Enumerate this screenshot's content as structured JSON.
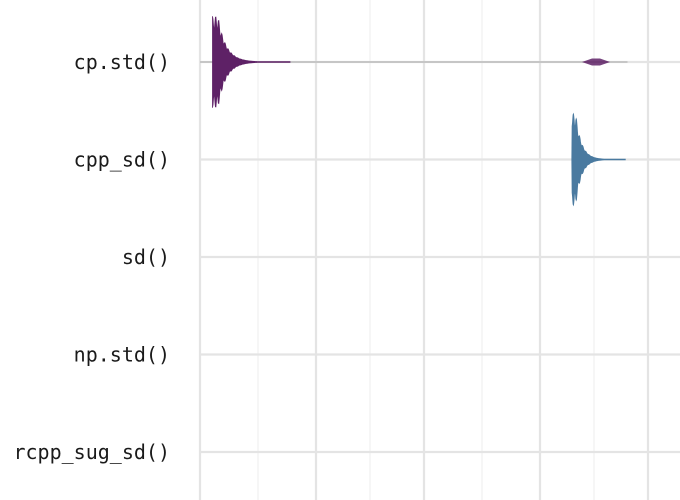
{
  "chart_data": {
    "type": "violin",
    "orientation": "horizontal",
    "title": "",
    "xlabel": "",
    "ylabel": "",
    "categories": [
      "cp.std()",
      "cpp_sd()",
      "sd()",
      "np.std()",
      "rcpp_sug_sd()"
    ],
    "x_axis": {
      "scale": "log",
      "tick_labels_visible": false
    },
    "grid": true,
    "legend": "none",
    "series": [
      {
        "category": "cp.std()",
        "color": "#5e2166",
        "peak_x": 0.04,
        "spread": 0.035,
        "tail_right": 0.16,
        "max_halfwidth": 0.88,
        "outlier_x": 0.88,
        "whisker": [
          0.0,
          0.95
        ],
        "whisker_color": "#bbbbbb"
      },
      {
        "category": "cpp_sd()",
        "color": "#4a7aa0",
        "peak_x": 0.835,
        "spread": 0.025,
        "tail_right": 0.11,
        "max_halfwidth": 0.88
      },
      {
        "category": "sd()"
      },
      {
        "category": "np.std()"
      },
      {
        "category": "rcpp_sug_sd()"
      }
    ]
  }
}
